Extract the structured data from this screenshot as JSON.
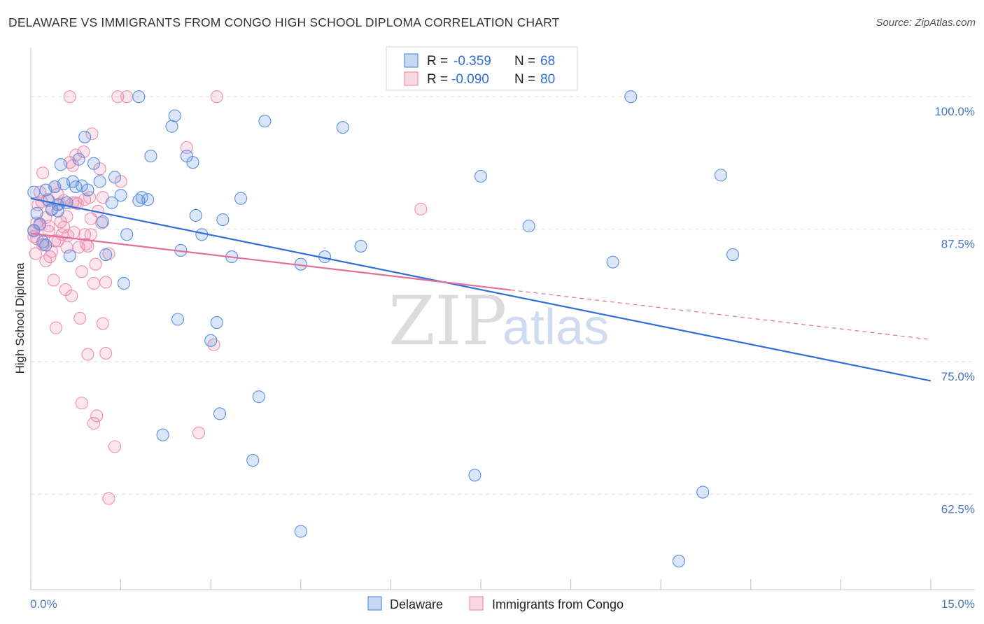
{
  "title": "DELAWARE VS IMMIGRANTS FROM CONGO HIGH SCHOOL DIPLOMA CORRELATION CHART",
  "source": "Source: ZipAtlas.com",
  "watermark": {
    "zip": "ZIP",
    "atlas": "atlas"
  },
  "colors": {
    "delaware": "#5b8fe0",
    "delaware_line": "#2f6fd6",
    "congo": "#ee8fb0",
    "congo_line": "#e0709a",
    "grid": "#d9d9d9",
    "tick": "#4a78c2"
  },
  "legend": {
    "rows": [
      {
        "r_label": "R =",
        "r_value": "-0.359",
        "n_label": "N =",
        "n_value": "68"
      },
      {
        "r_label": "R =",
        "r_value": "-0.090",
        "n_label": "N =",
        "n_value": "80"
      }
    ]
  },
  "chart_data": {
    "type": "scatter",
    "title": "DELAWARE VS IMMIGRANTS FROM CONGO HIGH SCHOOL DIPLOMA CORRELATION CHART",
    "xlabel": "",
    "ylabel": "High School Diploma",
    "xlim": [
      0,
      15
    ],
    "ylim": [
      53.5,
      104.5
    ],
    "x_tick_labels": [
      "0.0%",
      "15.0%"
    ],
    "y_ticks": [
      62.5,
      75.0,
      87.5,
      100.0
    ],
    "y_tick_labels": [
      "62.5%",
      "75.0%",
      "87.5%",
      "100.0%"
    ],
    "grid": true,
    "series": [
      {
        "name": "Delaware",
        "R": -0.359,
        "N": 68,
        "trend": {
          "x": [
            0,
            15
          ],
          "y": [
            90.4,
            73.2
          ],
          "dashed_from": null
        },
        "points": [
          [
            0.05,
            91.0
          ],
          [
            0.1,
            89.0
          ],
          [
            0.15,
            88.0
          ],
          [
            0.2,
            86.3
          ],
          [
            0.25,
            91.2
          ],
          [
            0.3,
            90.2
          ],
          [
            0.35,
            89.4
          ],
          [
            0.4,
            91.5
          ],
          [
            0.45,
            89.2
          ],
          [
            0.5,
            93.6
          ],
          [
            0.55,
            91.8
          ],
          [
            0.6,
            90.0
          ],
          [
            0.65,
            85.0
          ],
          [
            0.7,
            92.0
          ],
          [
            0.75,
            91.5
          ],
          [
            0.8,
            94.1
          ],
          [
            0.85,
            91.6
          ],
          [
            0.9,
            96.2
          ],
          [
            0.95,
            91.2
          ],
          [
            1.05,
            93.7
          ],
          [
            1.15,
            92.0
          ],
          [
            1.2,
            88.2
          ],
          [
            1.25,
            85.1
          ],
          [
            1.35,
            90.0
          ],
          [
            1.4,
            92.4
          ],
          [
            1.5,
            90.7
          ],
          [
            1.6,
            87.0
          ],
          [
            1.8,
            90.2
          ],
          [
            1.85,
            90.5
          ],
          [
            1.95,
            90.3
          ],
          [
            2.0,
            94.4
          ],
          [
            2.35,
            97.2
          ],
          [
            2.4,
            98.2
          ],
          [
            2.5,
            85.5
          ],
          [
            2.6,
            94.4
          ],
          [
            2.7,
            93.8
          ],
          [
            2.75,
            88.8
          ],
          [
            2.85,
            87.0
          ],
          [
            3.2,
            88.4
          ],
          [
            3.35,
            84.9
          ],
          [
            3.5,
            90.4
          ],
          [
            3.9,
            97.7
          ],
          [
            4.5,
            84.2
          ],
          [
            4.9,
            84.9
          ],
          [
            5.2,
            97.1
          ],
          [
            5.5,
            85.9
          ],
          [
            1.55,
            82.4
          ],
          [
            2.45,
            79.0
          ],
          [
            3.1,
            78.7
          ],
          [
            3.0,
            77.0
          ],
          [
            3.8,
            71.7
          ],
          [
            3.15,
            70.1
          ],
          [
            2.2,
            68.1
          ],
          [
            3.7,
            65.7
          ],
          [
            4.5,
            59.0
          ],
          [
            7.5,
            92.5
          ],
          [
            8.3,
            87.8
          ],
          [
            7.4,
            64.3
          ],
          [
            9.7,
            84.4
          ],
          [
            10.0,
            100.0
          ],
          [
            11.5,
            92.6
          ],
          [
            11.7,
            85.1
          ],
          [
            11.2,
            62.7
          ],
          [
            10.8,
            56.2
          ],
          [
            0.05,
            87.4
          ],
          [
            0.45,
            89.8
          ],
          [
            1.8,
            100.0
          ],
          [
            0.25,
            86.0
          ]
        ]
      },
      {
        "name": "Immigrants from Congo",
        "R": -0.09,
        "N": 80,
        "trend": {
          "x": [
            0,
            15
          ],
          "y": [
            87.1,
            77.1
          ],
          "dashed_from": 8.0
        },
        "points": [
          [
            0.05,
            87.3
          ],
          [
            0.08,
            85.2
          ],
          [
            0.1,
            86.6
          ],
          [
            0.12,
            89.8
          ],
          [
            0.15,
            87.9
          ],
          [
            0.18,
            90.1
          ],
          [
            0.2,
            92.8
          ],
          [
            0.22,
            86.1
          ],
          [
            0.25,
            88.6
          ],
          [
            0.28,
            90.3
          ],
          [
            0.3,
            87.3
          ],
          [
            0.32,
            84.9
          ],
          [
            0.35,
            85.4
          ],
          [
            0.38,
            82.7
          ],
          [
            0.4,
            91.5
          ],
          [
            0.42,
            78.2
          ],
          [
            0.45,
            86.4
          ],
          [
            0.48,
            89.9
          ],
          [
            0.5,
            88.2
          ],
          [
            0.52,
            87.0
          ],
          [
            0.55,
            90.2
          ],
          [
            0.58,
            81.8
          ],
          [
            0.6,
            85.8
          ],
          [
            0.62,
            86.9
          ],
          [
            0.65,
            93.8
          ],
          [
            0.68,
            81.2
          ],
          [
            0.7,
            93.5
          ],
          [
            0.72,
            87.2
          ],
          [
            0.75,
            94.5
          ],
          [
            0.78,
            89.9
          ],
          [
            0.8,
            85.8
          ],
          [
            0.82,
            79.1
          ],
          [
            0.85,
            83.5
          ],
          [
            0.88,
            94.8
          ],
          [
            0.9,
            90.3
          ],
          [
            0.92,
            86.1
          ],
          [
            0.95,
            85.9
          ],
          [
            0.98,
            90.5
          ],
          [
            1.0,
            88.5
          ],
          [
            1.02,
            96.5
          ],
          [
            1.05,
            82.4
          ],
          [
            1.08,
            84.2
          ],
          [
            1.12,
            89.2
          ],
          [
            1.15,
            93.2
          ],
          [
            1.18,
            88.1
          ],
          [
            1.2,
            90.5
          ],
          [
            1.25,
            82.5
          ],
          [
            1.3,
            85.2
          ],
          [
            0.95,
            75.7
          ],
          [
            1.05,
            69.2
          ],
          [
            1.1,
            69.9
          ],
          [
            1.25,
            75.8
          ],
          [
            1.3,
            62.1
          ],
          [
            1.4,
            67.0
          ],
          [
            0.85,
            71.1
          ],
          [
            1.2,
            78.6
          ],
          [
            1.5,
            92.0
          ],
          [
            2.6,
            95.2
          ],
          [
            2.8,
            68.3
          ],
          [
            3.05,
            76.6
          ],
          [
            6.5,
            89.4
          ],
          [
            0.65,
            100.0
          ],
          [
            1.45,
            100.0
          ],
          [
            1.6,
            100.0
          ],
          [
            3.1,
            100.0
          ],
          [
            0.3,
            87.8
          ],
          [
            0.4,
            86.4
          ],
          [
            0.6,
            88.7
          ],
          [
            0.75,
            90.0
          ],
          [
            0.9,
            87.0
          ],
          [
            1.0,
            87.0
          ],
          [
            0.2,
            86.0
          ],
          [
            0.15,
            91.0
          ],
          [
            0.55,
            87.7
          ],
          [
            0.7,
            90.0
          ],
          [
            0.35,
            89.3
          ],
          [
            0.45,
            90.8
          ],
          [
            0.25,
            84.5
          ],
          [
            0.1,
            88.1
          ],
          [
            0.05,
            86.8
          ]
        ]
      }
    ]
  }
}
